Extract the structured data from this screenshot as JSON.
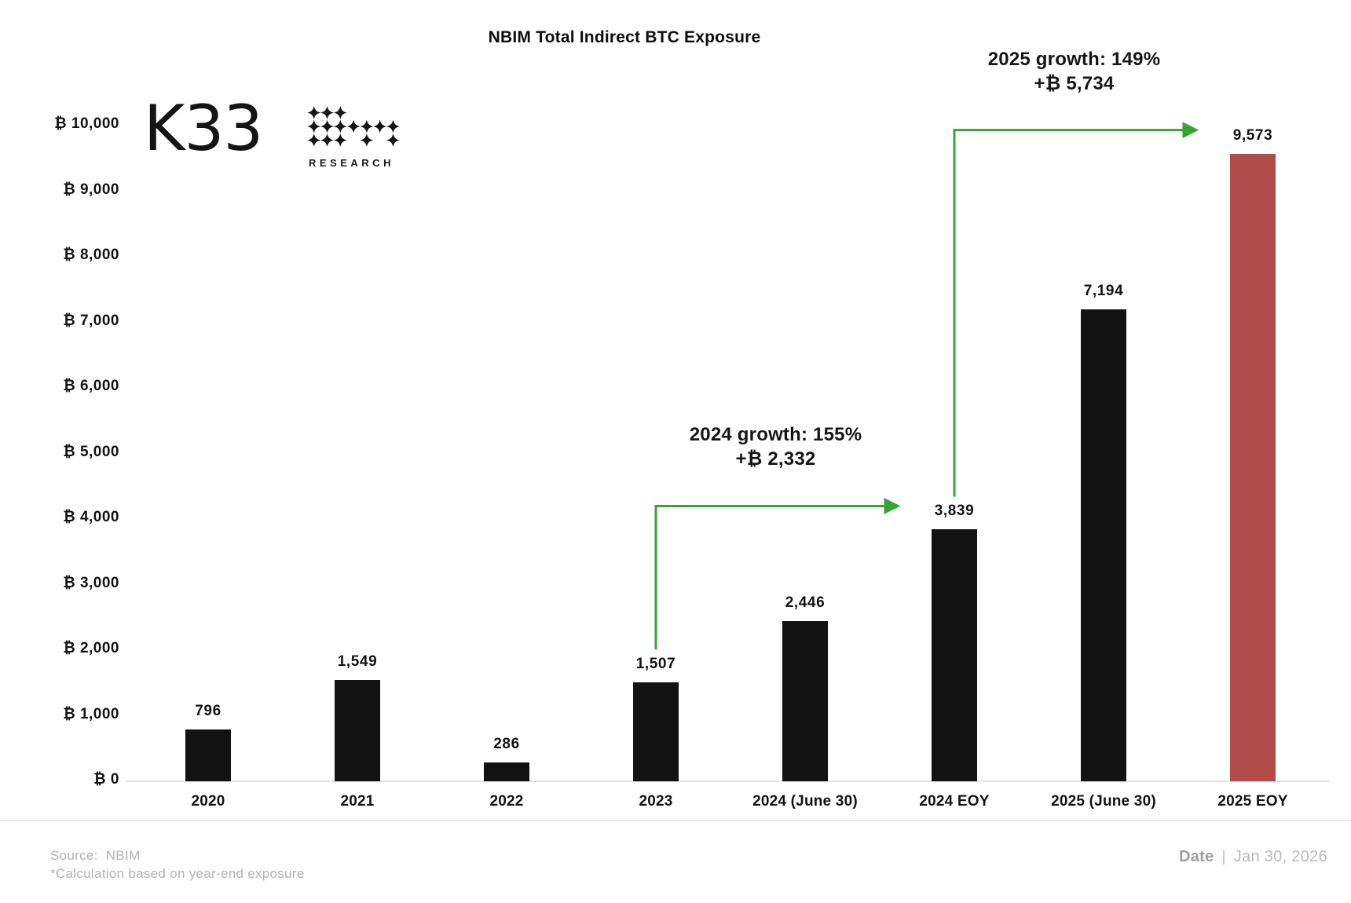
{
  "logo": {
    "wordmark": "K33",
    "subtext": "RESEARCH"
  },
  "chart_data": {
    "type": "bar",
    "title": "NBIM Total Indirect BTC Exposure",
    "categories": [
      "2020",
      "2021",
      "2022",
      "2023",
      "2024 (June 30)",
      "2024 EOY",
      "2025 (June 30)",
      "2025 EOY"
    ],
    "values": [
      796,
      1549,
      286,
      1507,
      2446,
      3839,
      7194,
      9573
    ],
    "value_labels": [
      "796",
      "1,549",
      "286",
      "1,507",
      "2,446",
      "3,839",
      "7,194",
      "9,573"
    ],
    "bar_colors": [
      "#121212",
      "#121212",
      "#121212",
      "#121212",
      "#121212",
      "#121212",
      "#121212",
      "#b04d4a"
    ],
    "xlabel": "",
    "ylabel": "",
    "ylim": [
      0,
      10000
    ],
    "y_tick_step": 1000,
    "y_tick_labels": [
      "₿ 0",
      "₿ 1,000",
      "₿ 2,000",
      "₿ 3,000",
      "₿ 4,000",
      "₿ 5,000",
      "₿ 6,000",
      "₿ 7,000",
      "₿ 8,000",
      "₿ 9,000",
      "₿ 10,000"
    ],
    "grid": false,
    "legend": false,
    "annotations": [
      {
        "line1": "2024 growth: 155%",
        "line2": "+₿ 2,332",
        "from_index": 3,
        "to_index": 5
      },
      {
        "line1": "2025 growth: 149%",
        "line2": "+₿ 5,734",
        "from_index": 5,
        "to_index": 7
      }
    ],
    "arrow_color": "#33a532",
    "axis_color": "#e2e2e2",
    "bar_label_color": "#121212"
  },
  "footer": {
    "source_label": "Source:",
    "source_value": "NBIM",
    "footnote": "*Calculation based on year-end exposure",
    "date_label": "Date",
    "date_separator": "|",
    "date_value": "Jan 30, 2026"
  }
}
